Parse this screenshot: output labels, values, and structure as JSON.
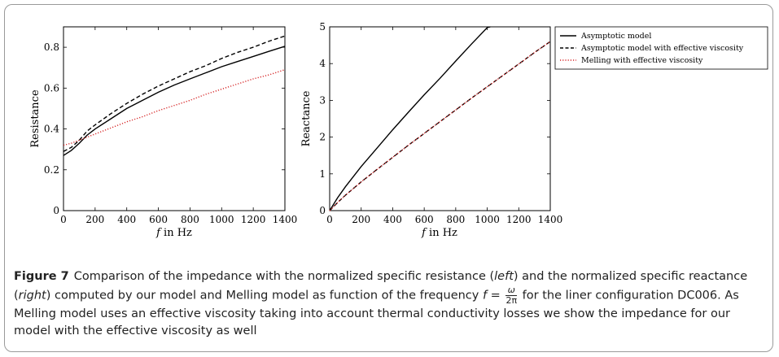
{
  "chart_data": [
    {
      "type": "line",
      "xlabel_italic": "f",
      "xlabel_rest": " in Hz",
      "ylabel": "Resistance",
      "xlim": [
        0,
        1400
      ],
      "ylim": [
        0,
        0.9
      ],
      "xticks": [
        "0",
        "200",
        "400",
        "600",
        "800",
        "1000",
        "1200",
        "1400"
      ],
      "yticks": [
        "0",
        "0.2",
        "0.4",
        "0.6",
        "0.8"
      ],
      "ytick_values": [
        0,
        0.2,
        0.4,
        0.6,
        0.8
      ],
      "grid": false,
      "series": [
        {
          "name": "Asymptotic model",
          "style": "solid",
          "color": "#000000",
          "x": [
            0,
            50,
            100,
            150,
            200,
            300,
            400,
            500,
            600,
            700,
            800,
            900,
            1000,
            1100,
            1200,
            1300,
            1400
          ],
          "y": [
            0.27,
            0.295,
            0.33,
            0.37,
            0.4,
            0.45,
            0.5,
            0.54,
            0.58,
            0.615,
            0.645,
            0.675,
            0.705,
            0.73,
            0.755,
            0.78,
            0.805
          ]
        },
        {
          "name": "Asymptotic model with effective viscosity",
          "style": "dashed",
          "color": "#000000",
          "x": [
            0,
            50,
            100,
            150,
            200,
            300,
            400,
            500,
            600,
            700,
            800,
            900,
            1000,
            1100,
            1200,
            1300,
            1400
          ],
          "y": [
            0.29,
            0.31,
            0.345,
            0.39,
            0.42,
            0.475,
            0.525,
            0.57,
            0.61,
            0.645,
            0.68,
            0.71,
            0.745,
            0.775,
            0.8,
            0.83,
            0.855
          ]
        },
        {
          "name": "Melling with effective viscosity",
          "style": "dotted",
          "color": "#d62728",
          "x": [
            0,
            50,
            100,
            150,
            200,
            300,
            400,
            500,
            600,
            700,
            800,
            900,
            1000,
            1100,
            1200,
            1300,
            1400
          ],
          "y": [
            0.32,
            0.33,
            0.345,
            0.36,
            0.375,
            0.405,
            0.435,
            0.46,
            0.49,
            0.515,
            0.54,
            0.57,
            0.595,
            0.62,
            0.645,
            0.665,
            0.69
          ]
        }
      ]
    },
    {
      "type": "line",
      "xlabel_italic": "f",
      "xlabel_rest": " in Hz",
      "ylabel": "Reactance",
      "xlim": [
        0,
        1400
      ],
      "ylim": [
        0,
        5
      ],
      "xticks": [
        "0",
        "200",
        "400",
        "600",
        "800",
        "1000",
        "1200",
        "1400"
      ],
      "yticks": [
        "0",
        "1",
        "2",
        "3",
        "4",
        "5"
      ],
      "ytick_values": [
        0,
        1,
        2,
        3,
        4,
        5
      ],
      "grid": false,
      "legend": "outside-right-top",
      "series": [
        {
          "name": "Asymptotic model",
          "style": "solid",
          "color": "#000000",
          "x": [
            0,
            50,
            100,
            200,
            300,
            400,
            500,
            600,
            700,
            800,
            900,
            1000,
            1020
          ],
          "y": [
            0,
            0.35,
            0.65,
            1.2,
            1.7,
            2.2,
            2.68,
            3.15,
            3.6,
            4.07,
            4.53,
            4.98,
            5.0
          ]
        },
        {
          "name": "Asymptotic model with effective viscosity",
          "style": "dashed",
          "color": "#000000",
          "x": [
            0,
            50,
            100,
            200,
            300,
            400,
            500,
            600,
            700,
            800,
            900,
            1000,
            1100,
            1200,
            1300,
            1400
          ],
          "y": [
            0,
            0.22,
            0.42,
            0.78,
            1.12,
            1.45,
            1.78,
            2.1,
            2.42,
            2.74,
            3.06,
            3.37,
            3.68,
            3.99,
            4.3,
            4.6
          ]
        },
        {
          "name": "Melling with effective viscosity",
          "style": "dotted",
          "color": "#d62728",
          "x": [
            0,
            50,
            100,
            200,
            300,
            400,
            500,
            600,
            700,
            800,
            900,
            1000,
            1100,
            1200,
            1300,
            1400
          ],
          "y": [
            0,
            0.22,
            0.42,
            0.78,
            1.12,
            1.45,
            1.78,
            2.1,
            2.42,
            2.74,
            3.06,
            3.37,
            3.68,
            3.99,
            4.3,
            4.6
          ]
        }
      ]
    }
  ],
  "legend": {
    "entries": [
      "Asymptotic model",
      "Asymptotic model with effective viscosity",
      "Melling with effective viscosity"
    ]
  },
  "caption": {
    "label": "Figure 7",
    "t1": "Comparison of the impedance with the normalized specific resistance (",
    "left": "left",
    "t2": ") and the normalized specific reactance (",
    "right": "right",
    "t3": ") computed by our model and Melling model as function of the frequency ",
    "f": "f",
    "eq": " = ",
    "num": "ω",
    "den": "2π",
    "t4": " for the liner configuration DC006. As Melling model uses an effective viscosity taking into account thermal conductivity losses we show the impedance for our model with the effective viscosity as well"
  }
}
